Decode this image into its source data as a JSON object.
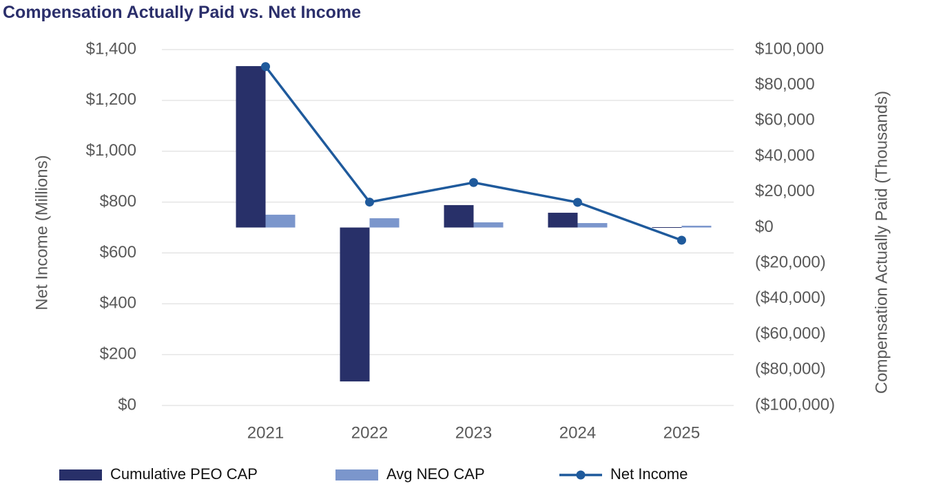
{
  "chart_data": {
    "type": "bar-line",
    "title": "Compensation Actually Paid vs. Net Income",
    "y_label": "Net Income (Millions)",
    "y2_label": "Compensation Actually Paid (Thousands)",
    "categories": [
      "2021",
      "2022",
      "2023",
      "2024",
      "2025"
    ],
    "series": [
      {
        "name": "Cumulative PEO CAP",
        "color": "#283069",
        "axis": "y2",
        "type": "bar",
        "values": [
          90700,
          -86500,
          12600,
          8300,
          200
        ]
      },
      {
        "name": "Avg NEO CAP",
        "color": "#7b96cc",
        "axis": "y2",
        "type": "bar",
        "values": [
          7200,
          5200,
          2900,
          2500,
          1000
        ]
      },
      {
        "name": "Net Income",
        "color": "#1f5a9c",
        "axis": "y",
        "type": "line",
        "values": [
          1333,
          800,
          877,
          799,
          650
        ]
      }
    ],
    "ylim": [
      0,
      1400
    ],
    "yticks": [
      {
        "value": 0,
        "label": "$0"
      },
      {
        "value": 200,
        "label": "$200"
      },
      {
        "value": 400,
        "label": "$400"
      },
      {
        "value": 600,
        "label": "$600"
      },
      {
        "value": 800,
        "label": "$800"
      },
      {
        "value": 1000,
        "label": "$1,000"
      },
      {
        "value": 1200,
        "label": "$1,200"
      },
      {
        "value": 1400,
        "label": "$1,400"
      }
    ],
    "y2lim": [
      -100000,
      100000
    ],
    "y2ticks": [
      {
        "value": -100000,
        "label": "($100,000)"
      },
      {
        "value": -80000,
        "label": "($80,000)"
      },
      {
        "value": -60000,
        "label": "($60,000)"
      },
      {
        "value": -40000,
        "label": "($40,000)"
      },
      {
        "value": -20000,
        "label": "($20,000)"
      },
      {
        "value": 0,
        "label": "$0"
      },
      {
        "value": 20000,
        "label": "$20,000"
      },
      {
        "value": 40000,
        "label": "$40,000"
      },
      {
        "value": 60000,
        "label": "$60,000"
      },
      {
        "value": 80000,
        "label": "$80,000"
      },
      {
        "value": 100000,
        "label": "$100,000"
      }
    ],
    "grid": true,
    "legend": "bottom"
  }
}
